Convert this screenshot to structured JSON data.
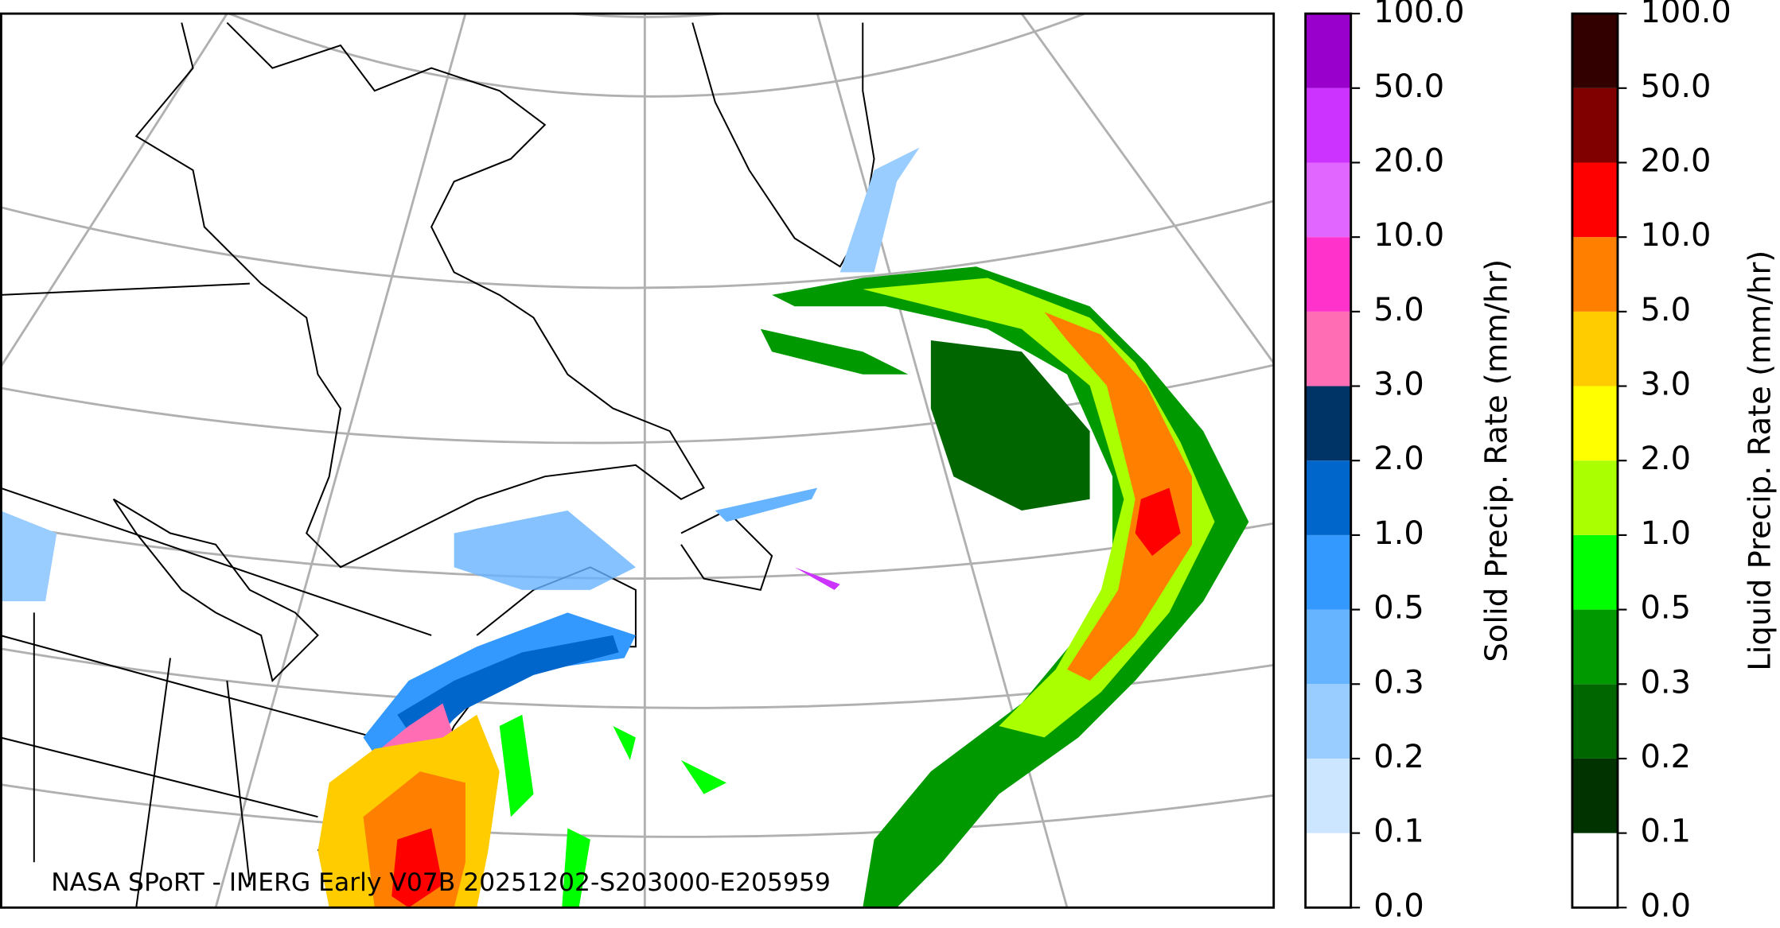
{
  "caption": "NASA SPoRT - IMERG Early V07B 20251202-S203000-E205959",
  "colorbars": [
    {
      "label": "Solid Precip. Rate (mm/hr)",
      "ticks": [
        {
          "value": 0,
          "label": "0.0"
        },
        {
          "value": 0.1,
          "label": "0.1"
        },
        {
          "value": 0.2,
          "label": "0.2"
        },
        {
          "value": 0.3,
          "label": "0.3"
        },
        {
          "value": 0.5,
          "label": "0.5"
        },
        {
          "value": 1,
          "label": "1.0"
        },
        {
          "value": 2,
          "label": "2.0"
        },
        {
          "value": 3,
          "label": "3.0"
        },
        {
          "value": 5,
          "label": "5.0"
        },
        {
          "value": 10,
          "label": "10.0"
        },
        {
          "value": 20,
          "label": "20.0"
        },
        {
          "value": 50,
          "label": "50.0"
        },
        {
          "value": 100,
          "label": "100.0"
        }
      ],
      "colors": [
        "#ffffff",
        "#cce6ff",
        "#99ccff",
        "#66b3ff",
        "#3399ff",
        "#0066cc",
        "#003366",
        "#ff6eb4",
        "#ff33cc",
        "#e066ff",
        "#cc33ff",
        "#9900cc"
      ]
    },
    {
      "label": "Liquid Precip. Rate (mm/hr)",
      "ticks": [
        {
          "value": 0,
          "label": "0.0"
        },
        {
          "value": 0.1,
          "label": "0.1"
        },
        {
          "value": 0.2,
          "label": "0.2"
        },
        {
          "value": 0.3,
          "label": "0.3"
        },
        {
          "value": 0.5,
          "label": "0.5"
        },
        {
          "value": 1,
          "label": "1.0"
        },
        {
          "value": 2,
          "label": "2.0"
        },
        {
          "value": 3,
          "label": "3.0"
        },
        {
          "value": 5,
          "label": "5.0"
        },
        {
          "value": 10,
          "label": "10.0"
        },
        {
          "value": 20,
          "label": "20.0"
        },
        {
          "value": 50,
          "label": "50.0"
        },
        {
          "value": 100,
          "label": "100.0"
        }
      ],
      "colors": [
        "#ffffff",
        "#003300",
        "#006600",
        "#009900",
        "#00ff00",
        "#aaff00",
        "#ffff00",
        "#ffcc00",
        "#ff8000",
        "#ff0000",
        "#800000",
        "#330000"
      ]
    }
  ]
}
